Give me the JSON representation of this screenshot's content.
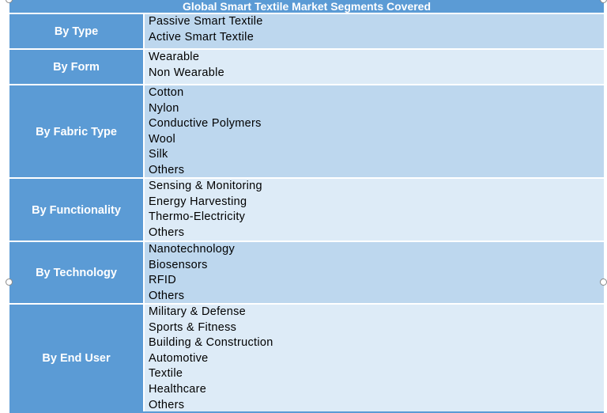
{
  "title": "Global Smart Textile Market Segments Covered",
  "segments": [
    {
      "label": "By Type",
      "items": [
        "Passive Smart Textile",
        "Active Smart Textile"
      ]
    },
    {
      "label": "By Form",
      "items": [
        "Wearable",
        "Non Wearable"
      ]
    },
    {
      "label": "By Fabric Type",
      "items": [
        "Cotton",
        "Nylon",
        "Conductive Polymers",
        "Wool",
        "Silk",
        "Others"
      ]
    },
    {
      "label": "By Functionality",
      "items": [
        "Sensing & Monitoring",
        "Energy Harvesting",
        "Thermo-Electricity",
        "Others"
      ]
    },
    {
      "label": "By Technology",
      "items": [
        "Nanotechnology",
        "Biosensors",
        "RFID",
        "Others"
      ]
    },
    {
      "label": "By End User",
      "items": [
        "Military & Defense",
        "Sports & Fitness",
        "Building & Construction",
        "Automotive",
        "Textile",
        "Healthcare",
        "Others"
      ]
    }
  ],
  "colors": {
    "header_blue": "#5b9bd5",
    "row_dark": "#bdd7ee",
    "row_light": "#ddebf7"
  }
}
